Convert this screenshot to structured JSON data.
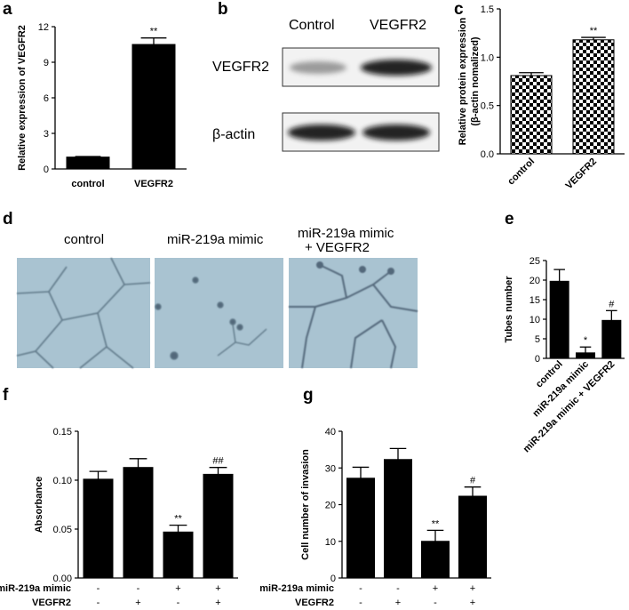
{
  "panel_labels": {
    "a": "a",
    "b": "b",
    "c": "c",
    "d": "d",
    "e": "e",
    "f": "f",
    "g": "g"
  },
  "western_blot": {
    "columns": [
      "Control",
      "VEGFR2"
    ],
    "rows": [
      "VEGFR2",
      "β-actin"
    ]
  },
  "micrographs": {
    "titles": [
      "control",
      "miR-219a mimic",
      "miR-219a mimic",
      "+ VEGFR2"
    ]
  },
  "colors": {
    "bar": "#000000",
    "micrograph_bg": "#a9c3d1"
  },
  "chart_data": [
    {
      "id": "a",
      "type": "bar",
      "categories": [
        "control",
        "VEGFR2"
      ],
      "values": [
        1.0,
        10.5
      ],
      "errors": [
        0.05,
        0.55
      ],
      "sig": [
        "",
        "**"
      ],
      "ylabel": "Relative  expression of VEGFR2",
      "ylim": [
        0,
        12
      ],
      "yticks": [
        0,
        3,
        6,
        9,
        12
      ],
      "bar_style": "solid"
    },
    {
      "id": "c",
      "type": "bar",
      "categories": [
        "control",
        "VEGFR2"
      ],
      "values": [
        0.81,
        1.18
      ],
      "errors": [
        0.03,
        0.025
      ],
      "sig": [
        "",
        "**"
      ],
      "ylabel": "Relative protein expression",
      "ylabel2": "(β-actin nomalized)",
      "ylim": [
        0,
        1.5
      ],
      "yticks": [
        "0.0",
        "0.5",
        "1.0",
        "1.5"
      ],
      "bar_style": "checkered"
    },
    {
      "id": "e",
      "type": "bar",
      "categories": [
        "control",
        "miR-219a  mimic",
        "miR-219a  mimic + VEGFR2"
      ],
      "values": [
        19.7,
        1.4,
        9.7
      ],
      "errors": [
        3.0,
        1.5,
        2.5
      ],
      "sig": [
        "",
        "*",
        "#"
      ],
      "ylabel": "Tubes number",
      "ylim": [
        0,
        25
      ],
      "yticks": [
        0,
        5,
        10,
        15,
        20,
        25
      ],
      "bar_style": "solid"
    },
    {
      "id": "f",
      "type": "bar",
      "categories": [
        "1",
        "2",
        "3",
        "4"
      ],
      "values": [
        0.101,
        0.113,
        0.047,
        0.106
      ],
      "errors": [
        0.008,
        0.009,
        0.007,
        0.007
      ],
      "sig": [
        "",
        "",
        "**",
        "##"
      ],
      "ylabel": "Absorbance",
      "ylim": [
        0,
        0.15
      ],
      "yticks": [
        "0.00",
        "0.05",
        "0.10",
        "0.15"
      ],
      "bar_style": "solid",
      "conditions": [
        {
          "label": "miR-219a  mimic",
          "values": [
            "-",
            "-",
            "+",
            "+"
          ]
        },
        {
          "label": "VEGFR2",
          "values": [
            "-",
            "+",
            "-",
            "+"
          ]
        }
      ]
    },
    {
      "id": "g",
      "type": "bar",
      "categories": [
        "1",
        "2",
        "3",
        "4"
      ],
      "values": [
        27.2,
        32.3,
        10.0,
        22.3
      ],
      "errors": [
        3.0,
        3.0,
        3.0,
        2.5
      ],
      "sig": [
        "",
        "",
        "**",
        "#"
      ],
      "ylabel": "Cell number of invasion",
      "ylim": [
        0,
        40
      ],
      "yticks": [
        0,
        10,
        20,
        30,
        40
      ],
      "bar_style": "solid",
      "conditions": [
        {
          "label": "miR-219a  mimic",
          "values": [
            "-",
            "-",
            "+",
            "+"
          ]
        },
        {
          "label": "VEGFR2",
          "values": [
            "-",
            "+",
            "-",
            "+"
          ]
        }
      ]
    }
  ]
}
